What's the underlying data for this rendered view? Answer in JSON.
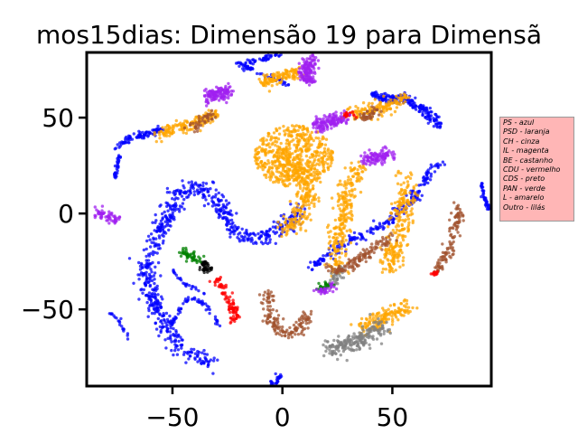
{
  "chart_data": {
    "type": "scatter",
    "title": "mos15dias: Dimensão 19 para Dimensã",
    "xlabel": "",
    "ylabel": "",
    "xlim": [
      -89,
      95
    ],
    "ylim": [
      -90,
      84
    ],
    "xticks": [
      -50,
      0,
      50
    ],
    "yticks": [
      -50,
      0,
      50
    ],
    "xtick_labels": [
      "−50",
      "0",
      "50"
    ],
    "ytick_labels": [
      "−50",
      "0",
      "50"
    ],
    "grid": false,
    "legend_placement": "right, outside plot",
    "legend_entries": [
      "PS - azul",
      "PSD - laranja",
      "CH - cinza",
      "IL - magenta",
      "BE - castanho",
      "CDU - vermelho",
      "CDS - preto",
      "PAN - verde",
      "L - amarelo",
      "Outro - lilás"
    ],
    "colors": {
      "PS": "#0000ff",
      "PSD": "#ffa500",
      "CH": "#808080",
      "BE": "#a0522d",
      "CDU": "#ff0000",
      "CDS": "#000000",
      "PAN": "#008000",
      "Outro": "#a020f0",
      "legend_bg": "#ffb6b6"
    },
    "clusters": [
      {
        "party": "PS",
        "shape": "path",
        "n": 700,
        "spread": 3.5,
        "path": [
          [
            -33,
            -78
          ],
          [
            -46,
            -70
          ],
          [
            -57,
            -52
          ],
          [
            -62,
            -30
          ],
          [
            -55,
            -8
          ],
          [
            -48,
            10
          ],
          [
            -38,
            14
          ],
          [
            -30,
            6
          ],
          [
            -22,
            -8
          ],
          [
            -15,
            -14
          ],
          [
            -8,
            -12
          ],
          [
            0,
            -8
          ],
          [
            5,
            -2
          ],
          [
            8,
            2
          ]
        ]
      },
      {
        "party": "PS",
        "shape": "path",
        "n": 90,
        "spread": 1.5,
        "path": [
          [
            -75,
            35
          ],
          [
            -68,
            40
          ],
          [
            -60,
            42
          ],
          [
            -54,
            44
          ]
        ]
      },
      {
        "party": "PS",
        "shape": "path",
        "n": 30,
        "spread": 0.8,
        "path": [
          [
            -74,
            30
          ],
          [
            -76,
            20
          ],
          [
            -76,
            18
          ]
        ]
      },
      {
        "party": "PS",
        "shape": "path",
        "n": 110,
        "spread": 1.4,
        "path": [
          [
            4,
            86
          ],
          [
            -10,
            80
          ],
          [
            -20,
            78
          ],
          [
            -8,
            72
          ],
          [
            2,
            68
          ]
        ]
      },
      {
        "party": "PS",
        "shape": "path",
        "n": 220,
        "spread": 2.2,
        "path": [
          [
            12,
            -30
          ],
          [
            22,
            -20
          ],
          [
            35,
            -12
          ],
          [
            48,
            -4
          ],
          [
            58,
            6
          ],
          [
            68,
            22
          ],
          [
            72,
            26
          ]
        ]
      },
      {
        "party": "PS",
        "shape": "path",
        "n": 200,
        "spread": 2,
        "path": [
          [
            40,
            62
          ],
          [
            48,
            60
          ],
          [
            56,
            60
          ],
          [
            64,
            54
          ],
          [
            72,
            46
          ]
        ]
      },
      {
        "party": "PS",
        "shape": "path",
        "n": 60,
        "spread": 0.9,
        "path": [
          [
            -52,
            -60
          ],
          [
            -42,
            -43
          ],
          [
            -36,
            -47
          ],
          [
            -30,
            -55
          ],
          [
            -28,
            -60
          ]
        ]
      },
      {
        "party": "PS",
        "shape": "path",
        "n": 20,
        "spread": 0.8,
        "path": [
          [
            -80,
            -52
          ],
          [
            -75,
            -54
          ],
          [
            -72,
            -62
          ],
          [
            -70,
            -65
          ]
        ]
      },
      {
        "party": "PS",
        "shape": "path",
        "n": 40,
        "spread": 0.8,
        "path": [
          [
            90,
            16
          ],
          [
            92,
            8
          ],
          [
            94,
            2
          ]
        ]
      },
      {
        "party": "PS",
        "shape": "path",
        "n": 25,
        "spread": 0.8,
        "path": [
          [
            -50,
            -30
          ],
          [
            -45,
            -36
          ],
          [
            -38,
            -40
          ],
          [
            -34,
            -42
          ]
        ]
      },
      {
        "party": "PS",
        "shape": "path",
        "n": 25,
        "spread": 1.2,
        "path": [
          [
            -1,
            -84
          ],
          [
            -3,
            -88
          ],
          [
            -5,
            -90
          ]
        ]
      },
      {
        "party": "PSD",
        "shape": "ellipse",
        "n": 520,
        "cx": 5,
        "cy": 30,
        "rx": 18,
        "ry": 16
      },
      {
        "party": "PSD",
        "shape": "path",
        "n": 260,
        "spread": 3.8,
        "path": [
          [
            -1,
            -10
          ],
          [
            5,
            -5
          ],
          [
            12,
            10
          ],
          [
            10,
            18
          ],
          [
            5,
            25
          ],
          [
            0,
            32
          ]
        ]
      },
      {
        "party": "PSD",
        "shape": "path",
        "n": 150,
        "spread": 3,
        "path": [
          [
            -58,
            40
          ],
          [
            -48,
            44
          ],
          [
            -38,
            48
          ],
          [
            -30,
            52
          ]
        ]
      },
      {
        "party": "PSD",
        "shape": "path",
        "n": 260,
        "spread": 4,
        "path": [
          [
            25,
            -30
          ],
          [
            25,
            -15
          ],
          [
            28,
            0
          ],
          [
            30,
            15
          ],
          [
            35,
            25
          ]
        ]
      },
      {
        "party": "PSD",
        "shape": "path",
        "n": 240,
        "spread": 4.2,
        "path": [
          [
            48,
            -30
          ],
          [
            52,
            -15
          ],
          [
            55,
            0
          ],
          [
            56,
            12
          ],
          [
            56,
            20
          ]
        ]
      },
      {
        "party": "PSD",
        "shape": "path",
        "n": 130,
        "spread": 3,
        "path": [
          [
            32,
            52
          ],
          [
            40,
            54
          ],
          [
            48,
            56
          ],
          [
            55,
            60
          ]
        ]
      },
      {
        "party": "PSD",
        "shape": "path",
        "n": 120,
        "spread": 2.8,
        "path": [
          [
            -10,
            68
          ],
          [
            0,
            72
          ],
          [
            8,
            74
          ]
        ]
      },
      {
        "party": "PSD",
        "shape": "path",
        "n": 150,
        "spread": 3.5,
        "path": [
          [
            35,
            -60
          ],
          [
            45,
            -55
          ],
          [
            55,
            -50
          ],
          [
            58,
            -48
          ]
        ]
      },
      {
        "party": "CH",
        "shape": "path",
        "n": 200,
        "spread": 4.5,
        "path": [
          [
            22,
            -70
          ],
          [
            30,
            -68
          ],
          [
            38,
            -64
          ],
          [
            45,
            -58
          ]
        ]
      },
      {
        "party": "CH",
        "shape": "path",
        "n": 40,
        "spread": 2.2,
        "path": [
          [
            20,
            -38
          ],
          [
            24,
            -34
          ],
          [
            28,
            -28
          ]
        ]
      },
      {
        "party": "BE",
        "shape": "path",
        "n": 150,
        "spread": 2.8,
        "path": [
          [
            -7,
            -42
          ],
          [
            -5,
            -52
          ],
          [
            -4,
            -58
          ],
          [
            0,
            -62
          ],
          [
            6,
            -62
          ],
          [
            10,
            -56
          ],
          [
            12,
            -52
          ]
        ]
      },
      {
        "party": "BE",
        "shape": "path",
        "n": 130,
        "spread": 2.5,
        "path": [
          [
            22,
            -30
          ],
          [
            30,
            -28
          ],
          [
            38,
            -22
          ],
          [
            45,
            -16
          ],
          [
            50,
            -12
          ]
        ]
      },
      {
        "party": "BE",
        "shape": "path",
        "n": 110,
        "spread": 2,
        "path": [
          [
            70,
            -30
          ],
          [
            75,
            -22
          ],
          [
            78,
            -10
          ],
          [
            80,
            -2
          ],
          [
            80,
            4
          ]
        ]
      },
      {
        "party": "BE",
        "shape": "path",
        "n": 40,
        "spread": 2.4,
        "path": [
          [
            -42,
            44
          ],
          [
            -36,
            48
          ],
          [
            -32,
            52
          ]
        ]
      },
      {
        "party": "BE",
        "shape": "path",
        "n": 40,
        "spread": 2.2,
        "path": [
          [
            35,
            50
          ],
          [
            40,
            52
          ],
          [
            44,
            54
          ]
        ]
      },
      {
        "party": "CDU",
        "shape": "path",
        "n": 90,
        "spread": 2,
        "path": [
          [
            -30,
            -34
          ],
          [
            -27,
            -40
          ],
          [
            -24,
            -46
          ],
          [
            -22,
            -52
          ],
          [
            -22,
            -56
          ]
        ]
      },
      {
        "party": "CDU",
        "shape": "path",
        "n": 25,
        "spread": 1.5,
        "path": [
          [
            28,
            50
          ],
          [
            30,
            52
          ],
          [
            33,
            50
          ]
        ]
      },
      {
        "party": "CDU",
        "shape": "path",
        "n": 12,
        "spread": 1,
        "path": [
          [
            68,
            -32
          ],
          [
            70,
            -31
          ]
        ]
      },
      {
        "party": "CDS",
        "shape": "ellipse",
        "n": 45,
        "cx": -35,
        "cy": -28,
        "rx": 3,
        "ry": 3
      },
      {
        "party": "PAN",
        "shape": "path",
        "n": 50,
        "spread": 2,
        "path": [
          [
            -46,
            -20
          ],
          [
            -42,
            -22
          ],
          [
            -38,
            -24
          ]
        ]
      },
      {
        "party": "PAN",
        "shape": "path",
        "n": 25,
        "spread": 1.8,
        "path": [
          [
            16,
            -40
          ],
          [
            19,
            -38
          ],
          [
            22,
            -36
          ]
        ]
      },
      {
        "party": "Outro",
        "shape": "path",
        "n": 120,
        "spread": 3,
        "path": [
          [
            -34,
            60
          ],
          [
            -30,
            62
          ],
          [
            -25,
            64
          ]
        ]
      },
      {
        "party": "Outro",
        "shape": "path",
        "n": 140,
        "spread": 3,
        "path": [
          [
            12,
            70
          ],
          [
            10,
            74
          ],
          [
            12,
            78
          ],
          [
            14,
            78
          ]
        ]
      },
      {
        "party": "Outro",
        "shape": "path",
        "n": 130,
        "spread": 3,
        "path": [
          [
            16,
            46
          ],
          [
            22,
            48
          ],
          [
            28,
            50
          ]
        ]
      },
      {
        "party": "Outro",
        "shape": "path",
        "n": 100,
        "spread": 3,
        "path": [
          [
            38,
            28
          ],
          [
            44,
            30
          ],
          [
            50,
            30
          ]
        ]
      },
      {
        "party": "Outro",
        "shape": "path",
        "n": 60,
        "spread": 2.2,
        "path": [
          [
            -85,
            1
          ],
          [
            -82,
            0
          ],
          [
            -78,
            -2
          ],
          [
            -75,
            -4
          ]
        ]
      },
      {
        "party": "Outro",
        "shape": "path",
        "n": 30,
        "spread": 2,
        "path": [
          [
            16,
            -40
          ],
          [
            20,
            -40
          ],
          [
            24,
            -38
          ]
        ]
      }
    ]
  }
}
